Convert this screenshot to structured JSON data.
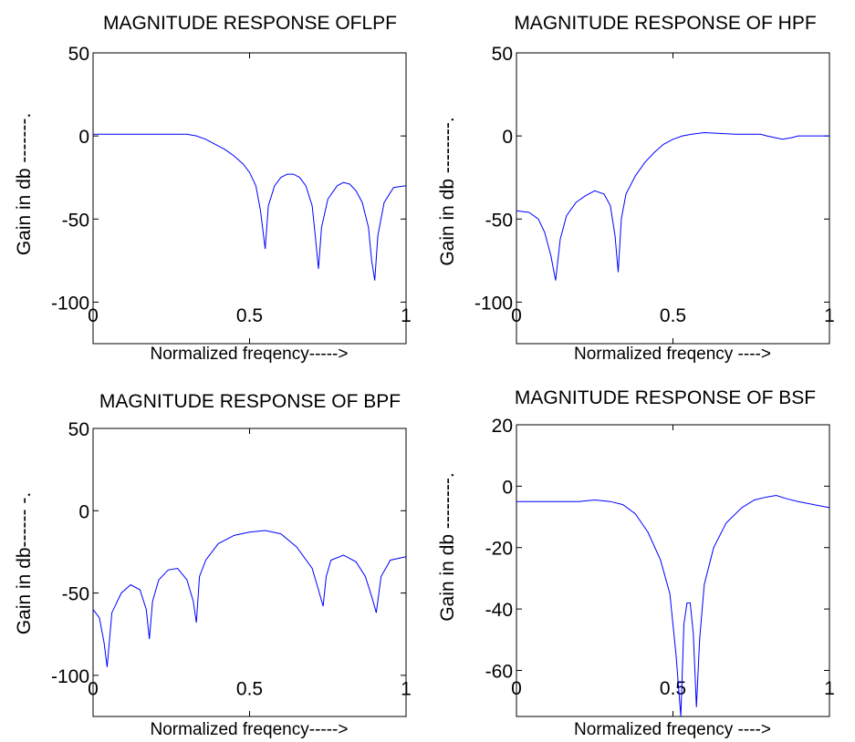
{
  "colors": {
    "line": "#0000ff",
    "axes": "#000000",
    "background": "#ffffff"
  },
  "chart_data": [
    {
      "type": "line",
      "title": "MAGNITUDE RESPONSE OFLPF",
      "xlabel": "Normalized freqency----->",
      "ylabel": "Gain in db -------.",
      "xlim": [
        0,
        1
      ],
      "ylim": [
        -125,
        50
      ],
      "xticks": [
        0,
        0.5,
        1
      ],
      "xtick_labels": [
        "0",
        "0.5",
        "1"
      ],
      "yticks": [
        50,
        0,
        -50,
        -100
      ],
      "ytick_labels": [
        "50",
        "0",
        "-50",
        "-100"
      ],
      "series": [
        {
          "x": [
            0,
            0.1,
            0.2,
            0.3,
            0.33,
            0.36,
            0.39,
            0.42,
            0.45,
            0.48,
            0.5,
            0.52,
            0.535,
            0.55,
            0.56,
            0.58,
            0.6,
            0.62,
            0.64,
            0.66,
            0.68,
            0.7,
            0.71,
            0.72,
            0.73,
            0.75,
            0.78,
            0.8,
            0.82,
            0.84,
            0.86,
            0.88,
            0.89,
            0.9,
            0.91,
            0.93,
            0.96,
            1.0
          ],
          "y": [
            1,
            1,
            1,
            1,
            0,
            -2,
            -5,
            -8,
            -12,
            -17,
            -22,
            -30,
            -45,
            -68,
            -42,
            -30,
            -25,
            -23,
            -23,
            -25,
            -30,
            -42,
            -60,
            -80,
            -55,
            -38,
            -30,
            -28,
            -29,
            -33,
            -40,
            -55,
            -75,
            -87,
            -60,
            -40,
            -31,
            -30
          ]
        }
      ]
    },
    {
      "type": "line",
      "title": "MAGNITUDE RESPONSE OF HPF",
      "xlabel": "Normalized freqency ---->",
      "ylabel": "Gain in db --------.",
      "xlim": [
        0,
        1
      ],
      "ylim": [
        -125,
        50
      ],
      "xticks": [
        0,
        0.5,
        1
      ],
      "xtick_labels": [
        "0",
        "0.5",
        "1"
      ],
      "yticks": [
        50,
        0,
        -50,
        -100
      ],
      "ytick_labels": [
        "50",
        "0",
        "-50",
        "-100"
      ],
      "series": [
        {
          "x": [
            0,
            0.04,
            0.07,
            0.09,
            0.11,
            0.125,
            0.14,
            0.16,
            0.19,
            0.22,
            0.25,
            0.28,
            0.3,
            0.315,
            0.325,
            0.335,
            0.35,
            0.38,
            0.41,
            0.44,
            0.47,
            0.5,
            0.53,
            0.56,
            0.6,
            0.7,
            0.78,
            0.8,
            0.85,
            0.88,
            0.9,
            1.0
          ],
          "y": [
            -45,
            -46,
            -50,
            -58,
            -72,
            -87,
            -62,
            -48,
            -40,
            -36,
            -33,
            -35,
            -42,
            -60,
            -82,
            -50,
            -35,
            -24,
            -16,
            -10,
            -5,
            -2,
            0,
            1,
            2,
            1,
            1,
            0,
            -2,
            -1,
            0,
            0
          ]
        }
      ]
    },
    {
      "type": "line",
      "title": "MAGNITUDE RESPONSE OF BPF",
      "xlabel": "Normalized freqency----->",
      "ylabel": "Gain in db------ -.",
      "xlim": [
        0,
        1
      ],
      "ylim": [
        -125,
        50
      ],
      "xticks": [
        0,
        0.5,
        1
      ],
      "xtick_labels": [
        "0",
        "0.5",
        "1"
      ],
      "yticks": [
        50,
        0,
        -50,
        -100
      ],
      "ytick_labels": [
        "50",
        "0",
        "-50",
        "-100"
      ],
      "series": [
        {
          "x": [
            0,
            0.02,
            0.035,
            0.045,
            0.06,
            0.09,
            0.12,
            0.15,
            0.17,
            0.18,
            0.19,
            0.21,
            0.24,
            0.27,
            0.3,
            0.32,
            0.33,
            0.34,
            0.36,
            0.4,
            0.45,
            0.5,
            0.55,
            0.6,
            0.65,
            0.7,
            0.72,
            0.735,
            0.745,
            0.76,
            0.8,
            0.84,
            0.87,
            0.89,
            0.905,
            0.92,
            0.95,
            1.0
          ],
          "y": [
            -60,
            -65,
            -80,
            -95,
            -62,
            -50,
            -45,
            -48,
            -60,
            -78,
            -55,
            -42,
            -36,
            -35,
            -42,
            -55,
            -68,
            -40,
            -30,
            -20,
            -15,
            -13,
            -12,
            -14,
            -22,
            -35,
            -48,
            -58,
            -40,
            -30,
            -27,
            -31,
            -40,
            -52,
            -62,
            -40,
            -30,
            -28
          ]
        }
      ]
    },
    {
      "type": "line",
      "title": "MAGNITUDE RESPONSE OF BSF",
      "xlabel": "Normalized freqency ---->",
      "ylabel": "Gain in db --------.",
      "xlim": [
        0,
        1
      ],
      "ylim": [
        -75,
        20
      ],
      "xticks": [
        0,
        0.5,
        1
      ],
      "xtick_labels": [
        "0",
        "0.5",
        "1"
      ],
      "yticks": [
        20,
        0,
        -20,
        -40,
        -60
      ],
      "ytick_labels": [
        "20",
        "0",
        "-20",
        "-40",
        "-60"
      ],
      "series": [
        {
          "x": [
            0,
            0.1,
            0.2,
            0.25,
            0.3,
            0.34,
            0.38,
            0.42,
            0.46,
            0.49,
            0.51,
            0.525,
            0.535,
            0.545,
            0.555,
            0.565,
            0.575,
            0.585,
            0.6,
            0.63,
            0.67,
            0.72,
            0.76,
            0.8,
            0.83,
            0.86,
            0.9,
            0.95,
            1.0
          ],
          "y": [
            -5,
            -5,
            -5,
            -4.5,
            -5,
            -6,
            -9,
            -15,
            -24,
            -35,
            -55,
            -75,
            -45,
            -38,
            -38,
            -48,
            -72,
            -50,
            -32,
            -20,
            -12,
            -7,
            -4.5,
            -3.5,
            -3,
            -4,
            -5,
            -6,
            -7
          ]
        }
      ]
    }
  ]
}
